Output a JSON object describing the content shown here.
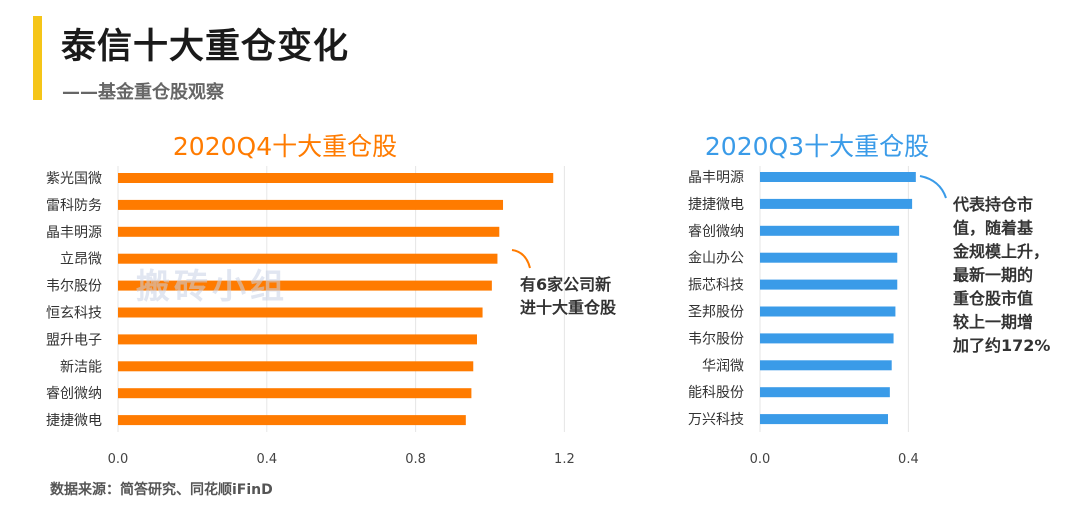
{
  "header": {
    "title": "泰信十大重仓变化",
    "subtitle": "——基金重仓股观察"
  },
  "footer": {
    "source": "数据来源：简答研究、同花顺iFinD"
  },
  "watermark": "搬砖小组",
  "colors": {
    "q4": "#FF7B00",
    "q3": "#3A9BE8",
    "accent": "#F5C518"
  },
  "chart_data": [
    {
      "type": "bar",
      "orientation": "horizontal",
      "title": "2020Q4十大重仓股",
      "categories": [
        "紫光国微",
        "雷科防务",
        "晶丰明源",
        "立昂微",
        "韦尔股份",
        "恒玄科技",
        "盟升电子",
        "新洁能",
        "睿创微纳",
        "捷捷微电"
      ],
      "values": [
        1.17,
        1.035,
        1.025,
        1.02,
        1.005,
        0.98,
        0.965,
        0.955,
        0.95,
        0.935
      ],
      "xlim": [
        0,
        1.3
      ],
      "xticks": [
        "0.0",
        "0.4",
        "0.8",
        "1.2"
      ],
      "grid": true,
      "annotation": [
        "有6家公司新",
        "进十大重仓股"
      ]
    },
    {
      "type": "bar",
      "orientation": "horizontal",
      "title": "2020Q3十大重仓股",
      "categories": [
        "晶丰明源",
        "捷捷微电",
        "睿创微纳",
        "金山办公",
        "振芯科技",
        "圣邦股份",
        "韦尔股份",
        "华润微",
        "能科股份",
        "万兴科技"
      ],
      "values": [
        0.42,
        0.41,
        0.375,
        0.37,
        0.37,
        0.365,
        0.36,
        0.355,
        0.35,
        0.345
      ],
      "xlim": [
        0,
        0.44
      ],
      "xticks": [
        "0.0",
        "0.4"
      ],
      "grid": true,
      "annotation": [
        "代表持仓市",
        "值，随着基",
        "金规模上升，",
        "最新一期的",
        "重仓股市值",
        "较上一期增",
        "加了约172%"
      ]
    }
  ]
}
